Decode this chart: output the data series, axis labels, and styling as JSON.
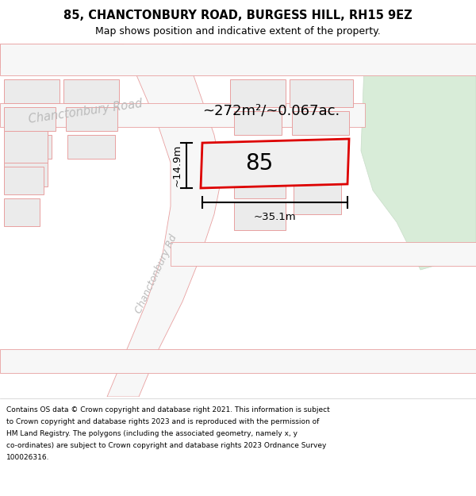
{
  "title": "85, CHANCTONBURY ROAD, BURGESS HILL, RH15 9EZ",
  "subtitle": "Map shows position and indicative extent of the property.",
  "footer_lines": [
    "Contains OS data © Crown copyright and database right 2021. This information is subject",
    "to Crown copyright and database rights 2023 and is reproduced with the permission of",
    "HM Land Registry. The polygons (including the associated geometry, namely x, y",
    "co-ordinates) are subject to Crown copyright and database rights 2023 Ordnance Survey",
    "100026316."
  ],
  "map_bg": "#f7f7f7",
  "road_fill": "#f7f7f7",
  "road_edge": "#e8a0a0",
  "block_fill": "#ebebeb",
  "block_edge": "#e8a0a0",
  "green_fill": "#d8ecd8",
  "green_edge": "#c8dcc8",
  "prop_fill": "#f0f0f0",
  "prop_edge": "#dd0000",
  "prop_lw": 2.0,
  "area_text": "~272m²/~0.067ac.",
  "property_label": "85",
  "dim_width": "~35.1m",
  "dim_height": "~14.9m",
  "title_fontsize": 10.5,
  "subtitle_fontsize": 9,
  "footer_fontsize": 6.5,
  "road_label_color": "#bbbbbb",
  "road_label_upper": "Chanctonbury Road",
  "road_label_lower": "Chanctonbury Rd"
}
